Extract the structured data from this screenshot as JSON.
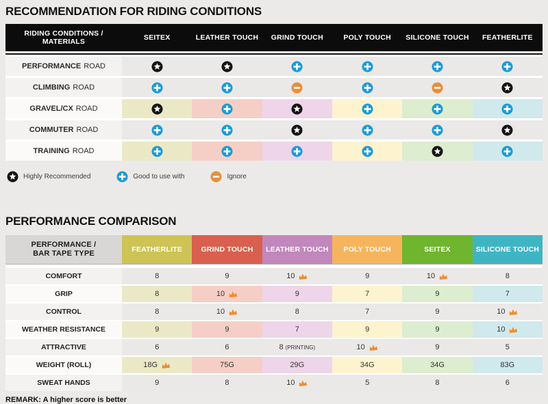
{
  "colors": {
    "star_bg": "#141414",
    "plus_bg": "#1b9bd7",
    "minus_bg": "#e78f3c",
    "crown": "#ef8d2f",
    "column_tints": [
      "#ebe9c5",
      "#f5cfc5",
      "#eed5e9",
      "#fdf3cf",
      "#ddedcf",
      "#cfe9ec"
    ],
    "plain_cell": "#eae9e7",
    "plain_label": "#f3f2f0",
    "tinted_label": "#fbfaf9"
  },
  "section1": {
    "title": "RECOMMENDATION FOR RIDING CONDITIONS",
    "table": {
      "corner_header": "RIDING CONDITIONS /\nMATERIALS",
      "columns": [
        "SEITEX",
        "LEATHER TOUCH",
        "GRIND TOUCH",
        "POLY TOUCH",
        "SILICONE TOUCH",
        "FEATHERLITE"
      ],
      "rows": [
        {
          "label_bold": "PERFORMANCE",
          "label_rest": "ROAD",
          "tinted": false,
          "cells": [
            "star",
            "star",
            "plus",
            "plus",
            "plus",
            "plus"
          ]
        },
        {
          "label_bold": "CLIMBING",
          "label_rest": "ROAD",
          "tinted": false,
          "cells": [
            "plus",
            "plus",
            "minus",
            "plus",
            "minus",
            "star"
          ]
        },
        {
          "label_bold": "GRAVEL/CX",
          "label_rest": "ROAD",
          "tinted": true,
          "cells": [
            "star",
            "plus",
            "star",
            "plus",
            "plus",
            "plus"
          ]
        },
        {
          "label_bold": "COMMUTER",
          "label_rest": "ROAD",
          "tinted": false,
          "cells": [
            "plus",
            "plus",
            "star",
            "plus",
            "plus",
            "star"
          ]
        },
        {
          "label_bold": "TRAINING",
          "label_rest": "ROAD",
          "tinted": true,
          "cells": [
            "plus",
            "plus",
            "plus",
            "plus",
            "star",
            "plus"
          ]
        }
      ]
    },
    "legend": [
      {
        "icon": "star",
        "label": "Highly Recommended"
      },
      {
        "icon": "plus",
        "label": "Good to use with"
      },
      {
        "icon": "minus",
        "label": "Ignore"
      }
    ]
  },
  "section2": {
    "title": "PERFORMANCE COMPARISON",
    "remark": "REMARK: A higher score is better",
    "table": {
      "corner_header": "PERFORMANCE /\nBAR TAPE TYPE",
      "columns": [
        {
          "label": "FEATHERLITE",
          "color": "#cdc455"
        },
        {
          "label": "GRIND TOUCH",
          "color": "#d9604e"
        },
        {
          "label": "LEATHER TOUCH",
          "color": "#c287bd"
        },
        {
          "label": "POLY TOUCH",
          "color": "#f6b55d"
        },
        {
          "label": "SEITEX",
          "color": "#6fb52d"
        },
        {
          "label": "SILICONE TOUCH",
          "color": "#3fb5c4"
        }
      ],
      "rows": [
        {
          "label": "COMFORT",
          "tinted": false,
          "cells": [
            {
              "value": "8"
            },
            {
              "value": "9"
            },
            {
              "value": "10",
              "crown": true
            },
            {
              "value": "9"
            },
            {
              "value": "10",
              "crown": true
            },
            {
              "value": "8"
            }
          ]
        },
        {
          "label": "GRIP",
          "tinted": true,
          "cells": [
            {
              "value": "8"
            },
            {
              "value": "10",
              "crown": true
            },
            {
              "value": "9"
            },
            {
              "value": "7"
            },
            {
              "value": "9"
            },
            {
              "value": "7"
            }
          ]
        },
        {
          "label": "CONTROL",
          "tinted": false,
          "cells": [
            {
              "value": "8"
            },
            {
              "value": "10",
              "crown": true
            },
            {
              "value": "8"
            },
            {
              "value": "7"
            },
            {
              "value": "9"
            },
            {
              "value": "10",
              "crown": true
            }
          ]
        },
        {
          "label": "WEATHER RESISTANCE",
          "tinted": true,
          "cells": [
            {
              "value": "9"
            },
            {
              "value": "9"
            },
            {
              "value": "7"
            },
            {
              "value": "9"
            },
            {
              "value": "9"
            },
            {
              "value": "10",
              "crown": true
            }
          ]
        },
        {
          "label": "ATTRACTIVE",
          "tinted": false,
          "cells": [
            {
              "value": "6"
            },
            {
              "value": "6"
            },
            {
              "value": "8",
              "note": "(PRINTING)"
            },
            {
              "value": "10",
              "crown": true
            },
            {
              "value": "9"
            },
            {
              "value": "5"
            }
          ]
        },
        {
          "label": "WEIGHT (ROLL)",
          "tinted": true,
          "cells": [
            {
              "value": "18G",
              "crown": true
            },
            {
              "value": "75G"
            },
            {
              "value": "29G"
            },
            {
              "value": "34G"
            },
            {
              "value": "34G"
            },
            {
              "value": "83G"
            }
          ]
        },
        {
          "label": "SWEAT HANDS",
          "tinted": false,
          "cells": [
            {
              "value": "9"
            },
            {
              "value": "8"
            },
            {
              "value": "10",
              "crown": true
            },
            {
              "value": "5"
            },
            {
              "value": "8"
            },
            {
              "value": "6"
            }
          ]
        }
      ]
    }
  }
}
